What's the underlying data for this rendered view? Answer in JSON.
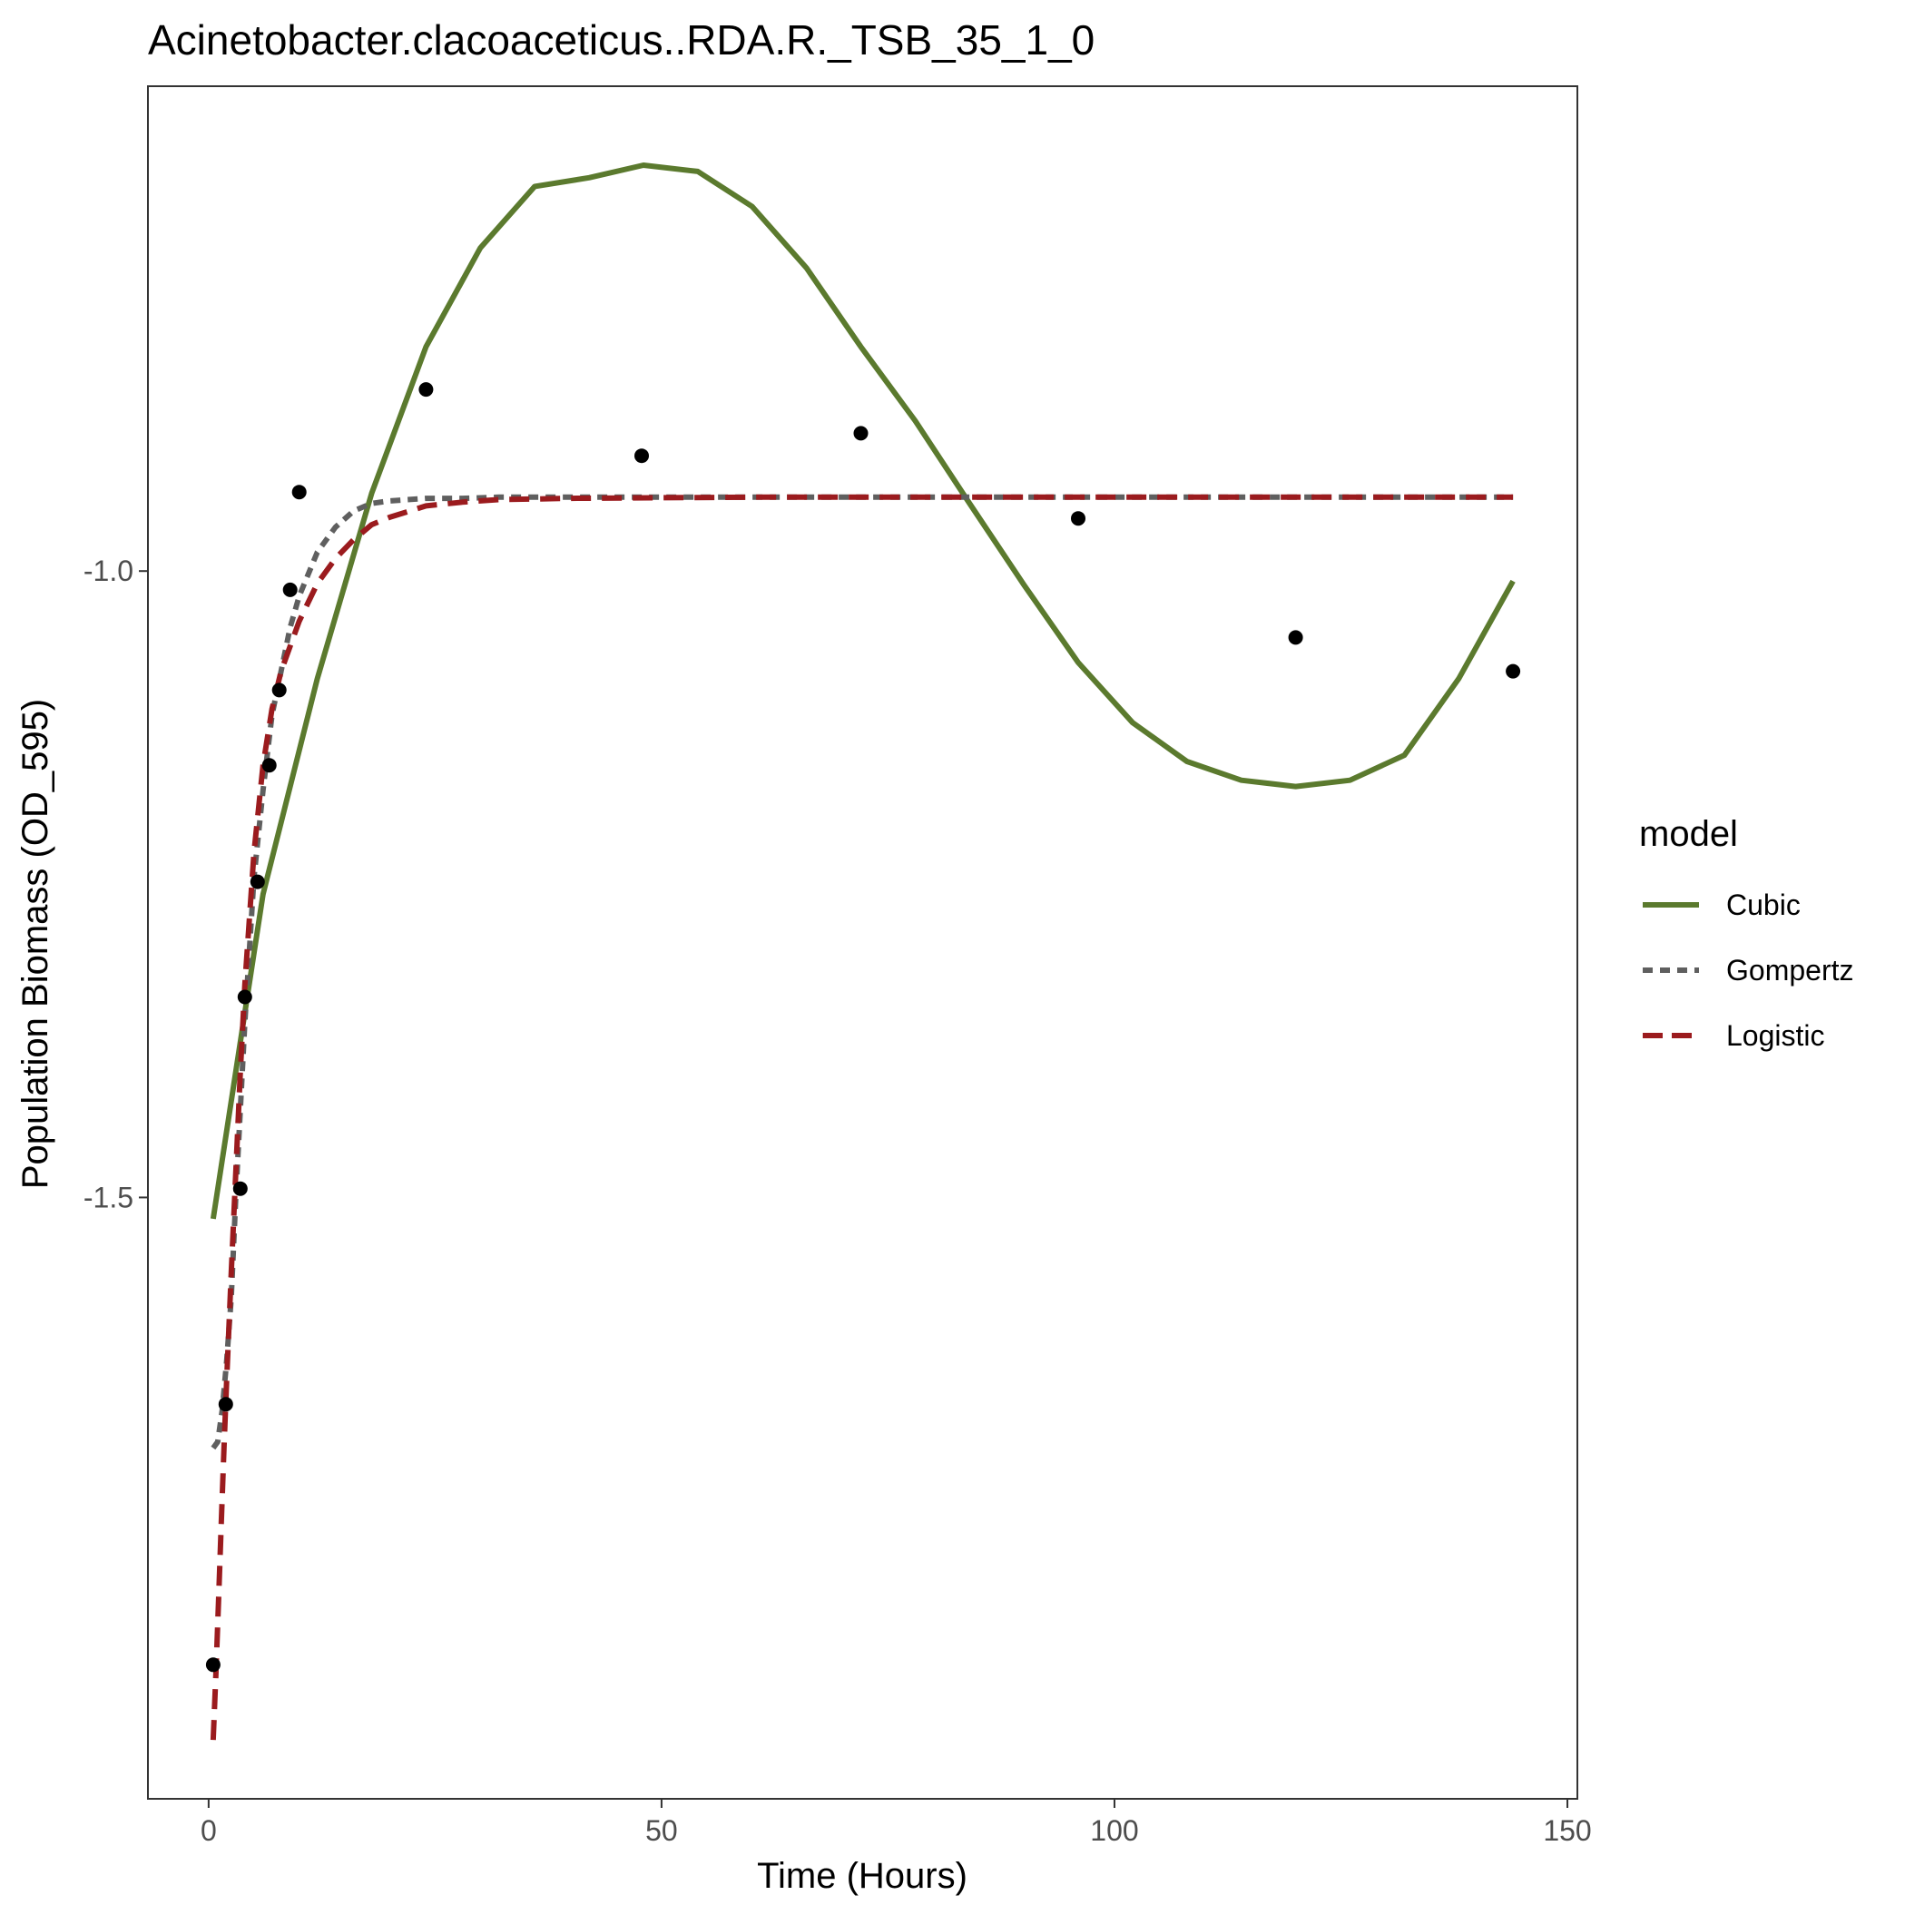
{
  "chart_data": {
    "type": "scatter",
    "title": "Acinetobacter.clacoaceticus..RDA.R._TSB_35_1_0",
    "xlabel": "Time (Hours)",
    "ylabel": "Population Biomass (OD_595)",
    "xlim": [
      -6.7,
      151.1
    ],
    "ylim": [
      -1.98,
      -0.613
    ],
    "x_ticks": [
      0,
      50,
      100,
      150
    ],
    "x_tick_labels": [
      "0",
      "50",
      "100",
      "150"
    ],
    "y_ticks": [
      -1.5,
      -1.0
    ],
    "y_tick_labels": [
      "-1.5",
      "-1.0"
    ],
    "grid": false,
    "legend": {
      "title": "model",
      "position": "right",
      "entries": [
        "Cubic",
        "Gompertz",
        "Logistic"
      ]
    },
    "points": {
      "x": [
        0.5,
        1.9,
        3.5,
        4.0,
        5.4,
        6.7,
        7.8,
        9.0,
        10.0,
        24.0,
        47.8,
        72.0,
        96.0,
        120.0,
        144.0
      ],
      "y": [
        -1.873,
        -1.665,
        -1.493,
        -1.34,
        -1.248,
        -1.155,
        -1.095,
        -1.015,
        -0.937,
        -0.855,
        -0.908,
        -0.89,
        -0.958,
        -1.053,
        -1.08
      ]
    },
    "series": [
      {
        "name": "Cubic",
        "color": "#5B7A2E",
        "dash": "solid",
        "x": [
          0.5,
          6,
          12,
          18,
          24,
          30,
          36,
          42,
          48,
          54,
          60,
          66,
          72,
          78,
          84,
          90,
          96,
          102,
          108,
          114,
          120,
          126,
          132,
          138,
          144
        ],
        "y": [
          -1.517,
          -1.258,
          -1.086,
          -0.938,
          -0.821,
          -0.742,
          -0.693,
          -0.686,
          -0.676,
          -0.681,
          -0.709,
          -0.758,
          -0.821,
          -0.88,
          -0.946,
          -1.011,
          -1.073,
          -1.121,
          -1.152,
          -1.167,
          -1.172,
          -1.167,
          -1.147,
          -1.086,
          -1.008
        ]
      },
      {
        "name": "Gompertz",
        "color": "#5F5F5F",
        "dash": "dotted",
        "x": [
          0.5,
          1,
          1.5,
          2,
          2.5,
          3,
          3.5,
          4,
          5,
          6,
          7,
          8,
          9,
          10,
          12,
          14,
          16,
          18,
          20,
          24,
          28,
          32,
          40,
          60,
          80,
          100,
          120,
          144
        ],
        "y": [
          -1.7,
          -1.695,
          -1.67,
          -1.63,
          -1.58,
          -1.5,
          -1.43,
          -1.36,
          -1.245,
          -1.175,
          -1.115,
          -1.08,
          -1.045,
          -1.02,
          -0.985,
          -0.965,
          -0.952,
          -0.946,
          -0.944,
          -0.942,
          -0.942,
          -0.941,
          -0.941,
          -0.941,
          -0.941,
          -0.941,
          -0.941,
          -0.941
        ]
      },
      {
        "name": "Logistic",
        "color": "#9B1B1E",
        "dash": "dashed",
        "x": [
          0.5,
          0.8,
          1.1,
          1.4,
          1.7,
          2,
          2.5,
          3,
          3.5,
          4,
          5,
          6,
          7,
          8,
          9,
          10,
          12,
          14,
          16,
          18,
          20,
          24,
          28,
          32,
          40,
          60,
          80,
          100,
          120,
          144
        ],
        "y": [
          -1.933,
          -1.88,
          -1.82,
          -1.76,
          -1.7,
          -1.645,
          -1.56,
          -1.48,
          -1.4,
          -1.33,
          -1.225,
          -1.155,
          -1.11,
          -1.08,
          -1.06,
          -1.04,
          -1.01,
          -0.99,
          -0.975,
          -0.963,
          -0.957,
          -0.948,
          -0.945,
          -0.943,
          -0.942,
          -0.941,
          -0.941,
          -0.941,
          -0.941,
          -0.941
        ]
      }
    ]
  }
}
